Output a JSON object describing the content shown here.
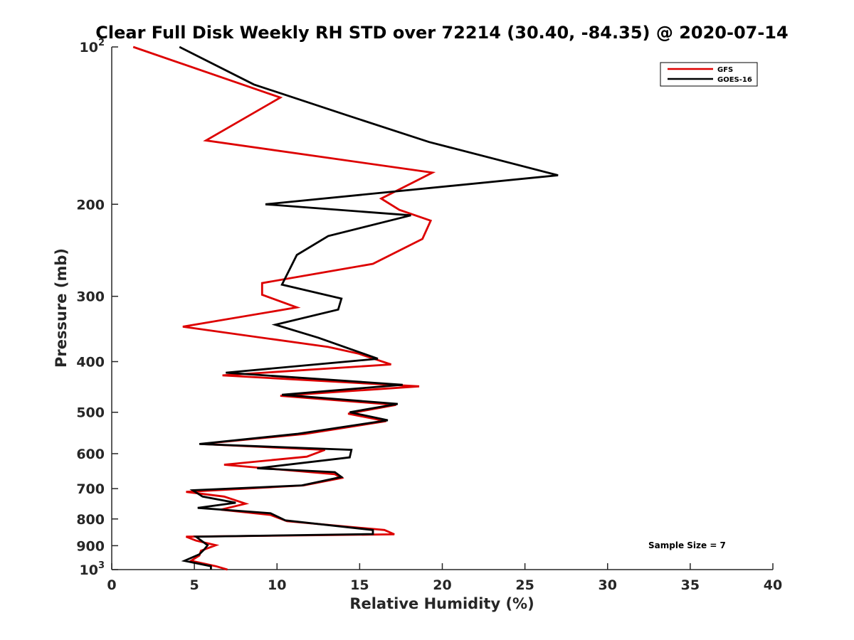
{
  "chart_data": {
    "type": "line",
    "title": "Clear Full Disk Weekly RH STD over 72214 (30.40, -84.35) @ 2020-07-14",
    "xlabel": "Relative Humidity (%)",
    "ylabel": "Pressure (mb)",
    "xlim": [
      0,
      40
    ],
    "ylim": [
      100,
      1000
    ],
    "yscale": "log",
    "y_reversed": true,
    "x_ticks": [
      0,
      5,
      10,
      15,
      20,
      25,
      30,
      35,
      40
    ],
    "x_tick_labels": [
      "0",
      "5",
      "10",
      "15",
      "20",
      "25",
      "30",
      "35",
      "40"
    ],
    "y_ticks": [
      100,
      200,
      300,
      400,
      500,
      600,
      700,
      800,
      900,
      1000
    ],
    "y_tick_labels": [
      {
        "base": "10",
        "exp": "2"
      },
      {
        "base": "200",
        "exp": ""
      },
      {
        "base": "300",
        "exp": ""
      },
      {
        "base": "400",
        "exp": ""
      },
      {
        "base": "500",
        "exp": ""
      },
      {
        "base": "600",
        "exp": ""
      },
      {
        "base": "700",
        "exp": ""
      },
      {
        "base": "800",
        "exp": ""
      },
      {
        "base": "900",
        "exp": ""
      },
      {
        "base": "10",
        "exp": "3"
      }
    ],
    "grid": false,
    "legend_position": "top-right",
    "annotation": "Sample Size = 7",
    "series": [
      {
        "name": "GFS",
        "color": "#dd0000",
        "points": [
          [
            1.3,
            100
          ],
          [
            10.2,
            125
          ],
          [
            5.7,
            151
          ],
          [
            19.4,
            174
          ],
          [
            16.3,
            195
          ],
          [
            17.4,
            205
          ],
          [
            19.3,
            215
          ],
          [
            18.8,
            233
          ],
          [
            15.8,
            260
          ],
          [
            9.1,
            283
          ],
          [
            9.1,
            298
          ],
          [
            11.2,
            315
          ],
          [
            4.3,
            343
          ],
          [
            13.1,
            375
          ],
          [
            14.9,
            386
          ],
          [
            16.9,
            405
          ],
          [
            6.7,
            425
          ],
          [
            18.6,
            446
          ],
          [
            10.2,
            465
          ],
          [
            17.2,
            484
          ],
          [
            14.3,
            503
          ],
          [
            16.6,
            520
          ],
          [
            11.7,
            550
          ],
          [
            5.4,
            575
          ],
          [
            12.9,
            590
          ],
          [
            11.8,
            608
          ],
          [
            6.8,
            630
          ],
          [
            13.5,
            657
          ],
          [
            13.9,
            668
          ],
          [
            11.6,
            690
          ],
          [
            4.5,
            710
          ],
          [
            6.8,
            725
          ],
          [
            8.1,
            748
          ],
          [
            6.6,
            768
          ],
          [
            9.6,
            786
          ],
          [
            10.6,
            808
          ],
          [
            16.5,
            840
          ],
          [
            17.1,
            856
          ],
          [
            4.5,
            865
          ],
          [
            5.1,
            880
          ],
          [
            6.3,
            898
          ],
          [
            5.4,
            920
          ],
          [
            5.3,
            940
          ],
          [
            4.8,
            962
          ],
          [
            6.3,
            985
          ],
          [
            7.0,
            1000
          ]
        ]
      },
      {
        "name": "GOES-16",
        "color": "#000000",
        "points": [
          [
            4.1,
            100
          ],
          [
            8.6,
            118
          ],
          [
            14.2,
            135
          ],
          [
            19.2,
            152
          ],
          [
            27.0,
            176
          ],
          [
            9.3,
            200
          ],
          [
            18.1,
            210
          ],
          [
            13.1,
            230
          ],
          [
            11.2,
            250
          ],
          [
            10.3,
            285
          ],
          [
            13.9,
            303
          ],
          [
            13.7,
            318
          ],
          [
            9.9,
            340
          ],
          [
            12.5,
            360
          ],
          [
            16.1,
            395
          ],
          [
            6.9,
            420
          ],
          [
            17.6,
            443
          ],
          [
            10.3,
            463
          ],
          [
            17.3,
            482
          ],
          [
            14.4,
            500
          ],
          [
            16.7,
            518
          ],
          [
            11.2,
            550
          ],
          [
            5.3,
            575
          ],
          [
            14.5,
            590
          ],
          [
            14.4,
            610
          ],
          [
            8.8,
            640
          ],
          [
            13.5,
            651
          ],
          [
            13.9,
            665
          ],
          [
            11.5,
            690
          ],
          [
            4.9,
            705
          ],
          [
            5.5,
            725
          ],
          [
            7.5,
            745
          ],
          [
            5.2,
            762
          ],
          [
            9.6,
            780
          ],
          [
            10.5,
            805
          ],
          [
            15.8,
            840
          ],
          [
            15.8,
            855
          ],
          [
            5.1,
            865
          ],
          [
            5.8,
            898
          ],
          [
            5.6,
            915
          ],
          [
            5.3,
            935
          ],
          [
            4.4,
            962
          ],
          [
            6.0,
            985
          ],
          [
            6.0,
            1000
          ]
        ]
      }
    ]
  }
}
